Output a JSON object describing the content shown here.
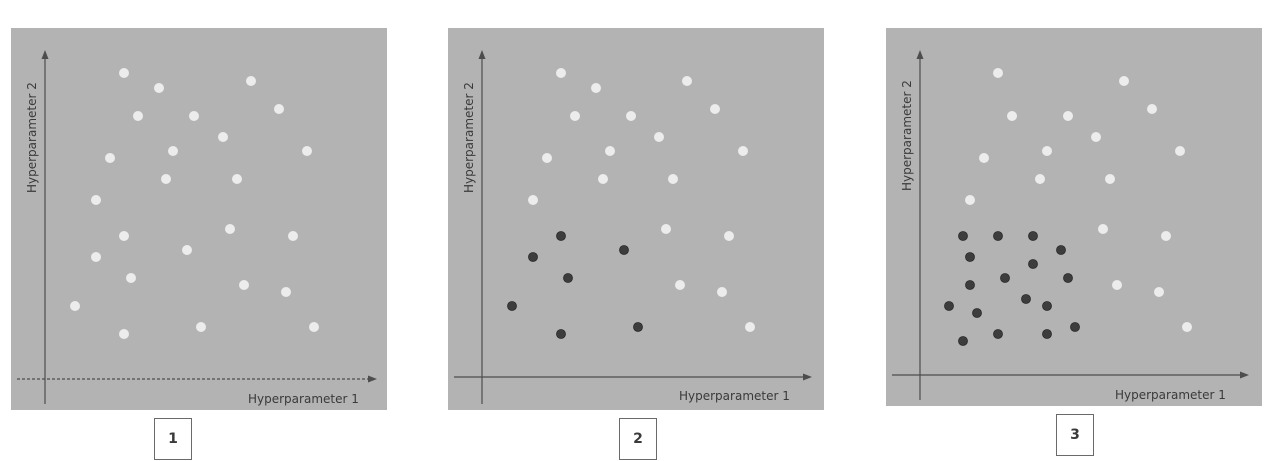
{
  "colors": {
    "panel_bg": "#b3b3b3",
    "light_point": "#ececec",
    "dark_point": "#3d3d3d",
    "axis": "#4d4d4d"
  },
  "panels": [
    {
      "number": "1",
      "xlabel": "Hyperparameter 1",
      "ylabel": "Hyperparameter 2",
      "light_points": [
        [
          124,
          73
        ],
        [
          159,
          88
        ],
        [
          251,
          81
        ],
        [
          138,
          116
        ],
        [
          194,
          116
        ],
        [
          279,
          109
        ],
        [
          110,
          158
        ],
        [
          173,
          151
        ],
        [
          223,
          137
        ],
        [
          307,
          151
        ],
        [
          166,
          179
        ],
        [
          237,
          179
        ],
        [
          96,
          200
        ],
        [
          124,
          236
        ],
        [
          230,
          229
        ],
        [
          293,
          236
        ],
        [
          96,
          257
        ],
        [
          187,
          250
        ],
        [
          131,
          278
        ],
        [
          244,
          285
        ],
        [
          286,
          292
        ],
        [
          75,
          306
        ],
        [
          201,
          327
        ],
        [
          314,
          327
        ],
        [
          124,
          334
        ]
      ],
      "dark_points": []
    },
    {
      "number": "2",
      "xlabel": "Hyperparameter 1",
      "ylabel": "Hyperparameter 2",
      "light_points": [
        [
          561,
          73
        ],
        [
          596,
          88
        ],
        [
          687,
          81
        ],
        [
          575,
          116
        ],
        [
          631,
          116
        ],
        [
          715,
          109
        ],
        [
          547,
          158
        ],
        [
          610,
          151
        ],
        [
          659,
          137
        ],
        [
          743,
          151
        ],
        [
          603,
          179
        ],
        [
          673,
          179
        ],
        [
          533,
          200
        ],
        [
          666,
          229
        ],
        [
          729,
          236
        ],
        [
          680,
          285
        ],
        [
          722,
          292
        ],
        [
          750,
          327
        ]
      ],
      "dark_points": [
        [
          561,
          236
        ],
        [
          533,
          257
        ],
        [
          624,
          250
        ],
        [
          568,
          278
        ],
        [
          512,
          306
        ],
        [
          638,
          327
        ],
        [
          561,
          334
        ]
      ]
    },
    {
      "number": "3",
      "xlabel": "Hyperparameter 1",
      "ylabel": "Hyperparameter 2",
      "light_points": [
        [
          998,
          73
        ],
        [
          1124,
          81
        ],
        [
          1012,
          116
        ],
        [
          1068,
          116
        ],
        [
          1152,
          109
        ],
        [
          984,
          158
        ],
        [
          1047,
          151
        ],
        [
          1096,
          137
        ],
        [
          1180,
          151
        ],
        [
          1040,
          179
        ],
        [
          1110,
          179
        ],
        [
          970,
          200
        ],
        [
          1103,
          229
        ],
        [
          1166,
          236
        ],
        [
          1117,
          285
        ],
        [
          1159,
          292
        ],
        [
          1187,
          327
        ]
      ],
      "dark_points": [
        [
          963,
          236
        ],
        [
          998,
          236
        ],
        [
          1033,
          236
        ],
        [
          970,
          257
        ],
        [
          1061,
          250
        ],
        [
          1005,
          278
        ],
        [
          1033,
          264
        ],
        [
          1068,
          278
        ],
        [
          970,
          285
        ],
        [
          1026,
          299
        ],
        [
          949,
          306
        ],
        [
          977,
          313
        ],
        [
          1047,
          306
        ],
        [
          998,
          334
        ],
        [
          1047,
          334
        ],
        [
          1075,
          327
        ],
        [
          963,
          341
        ]
      ]
    }
  ]
}
